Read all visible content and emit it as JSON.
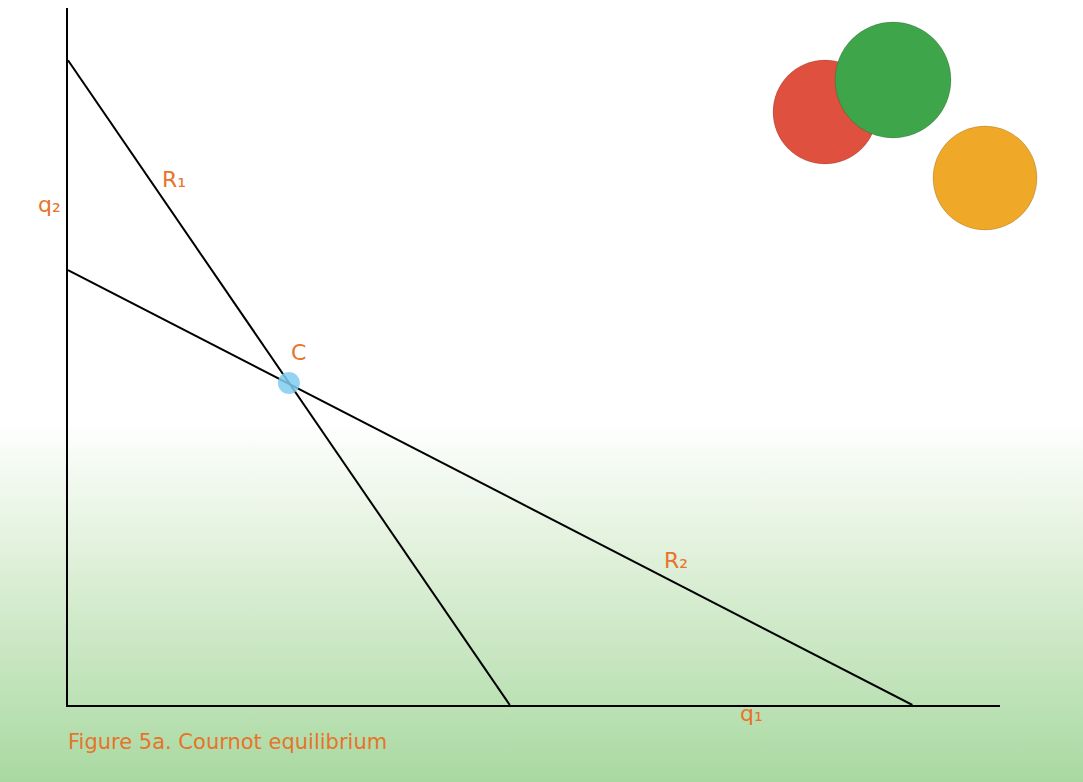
{
  "chart_data": {
    "type": "line",
    "title": "Figure 5a. Cournot equilibrium",
    "x_label": "q₁",
    "y_label": "q₂",
    "xlim": [
      0,
      10
    ],
    "ylim": [
      0,
      10
    ],
    "xticks": [],
    "yticks": [],
    "tick_labels": false,
    "grid": false,
    "series": [
      {
        "name": "R₁",
        "type": "line",
        "color": "#000000",
        "line_style": "solid",
        "x": [
          0,
          4.74
        ],
        "values": [
          9.25,
          0
        ]
      },
      {
        "name": "R₂",
        "type": "line",
        "color": "#000000",
        "line_style": "solid",
        "x": [
          0,
          9.06
        ],
        "values": [
          6.24,
          0
        ]
      },
      {
        "name": "C",
        "type": "scatter",
        "color": "#7fcdf0",
        "marker": "circle",
        "x": [
          2.37
        ],
        "values": [
          4.62
        ]
      }
    ]
  }
}
